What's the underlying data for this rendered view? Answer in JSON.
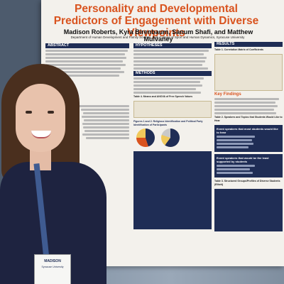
{
  "poster": {
    "title": "Personality and Developmental Predictors of Engagement with Diverse Viewpoints",
    "authors": "Madison Roberts, Kyra Birenbaum, Sanum Shafi, and Matthew Mulvaney",
    "department": "Department of Human Development and Family Science, Falk College of Sport and Human Dynamics, Syracuse University",
    "sections": {
      "abstract": "ABSTRACT",
      "hypotheses": "HYPOTHESES",
      "methods": "METHODS",
      "results": "RESULTS",
      "key_findings": "Key Findings"
    },
    "table_labels": {
      "table1": "Table 1. Correlation Matrix of Coefficients",
      "table2": "Table 2. Speakers and Topics that Students Would Like to Hear",
      "table3": "Table 3. Structured Groups/Profiles of Diverse Students (Elliott)",
      "table4": "Table 4. Means and ANOVA of Free Speech Values",
      "figures": "Figures 1 and 2. Religious Identification and Political Party Identification of Participants"
    },
    "speakers_box_1_title": "Event speakers that most students would like to hear",
    "speakers_box_2_title": "Event speakers that would be the least supported by students"
  },
  "badge": {
    "name": "MADISON",
    "subtitle": "Syracuse University"
  }
}
